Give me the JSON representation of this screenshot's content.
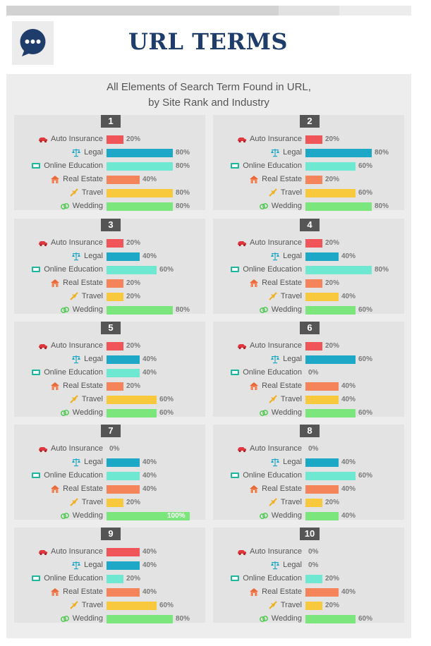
{
  "header": {
    "title": "URL TERMS",
    "logo_icon": "chat-bubble-icon"
  },
  "chart_data": {
    "type": "bar",
    "title": "All Elements of Search Term Found in URL,",
    "subtitle": "by Site Rank and Industry",
    "categories": [
      "Auto Insurance",
      "Legal",
      "Online Education",
      "Real Estate",
      "Travel",
      "Wedding"
    ],
    "category_icons": [
      "car-icon",
      "scales-icon",
      "monitor-icon",
      "house-icon",
      "airplane-icon",
      "rings-icon"
    ],
    "colors": [
      "#f0555a",
      "#1ea8c8",
      "#6fe8d2",
      "#f5845a",
      "#f8c93c",
      "#7be67b"
    ],
    "xlim": [
      0,
      100
    ],
    "unit": "%",
    "panels": [
      {
        "rank": "1",
        "values": [
          20,
          80,
          80,
          40,
          80,
          80
        ]
      },
      {
        "rank": "2",
        "values": [
          20,
          80,
          60,
          20,
          60,
          80
        ]
      },
      {
        "rank": "3",
        "values": [
          20,
          40,
          60,
          20,
          20,
          80
        ]
      },
      {
        "rank": "4",
        "values": [
          20,
          40,
          80,
          20,
          40,
          60
        ]
      },
      {
        "rank": "5",
        "values": [
          20,
          40,
          40,
          20,
          60,
          60
        ]
      },
      {
        "rank": "6",
        "values": [
          20,
          60,
          0,
          40,
          40,
          60
        ]
      },
      {
        "rank": "7",
        "values": [
          0,
          40,
          40,
          40,
          20,
          100
        ]
      },
      {
        "rank": "8",
        "values": [
          0,
          40,
          60,
          40,
          20,
          40
        ]
      },
      {
        "rank": "9",
        "values": [
          40,
          40,
          20,
          40,
          60,
          80
        ]
      },
      {
        "rank": "10",
        "values": [
          0,
          0,
          20,
          40,
          20,
          60
        ]
      }
    ]
  }
}
